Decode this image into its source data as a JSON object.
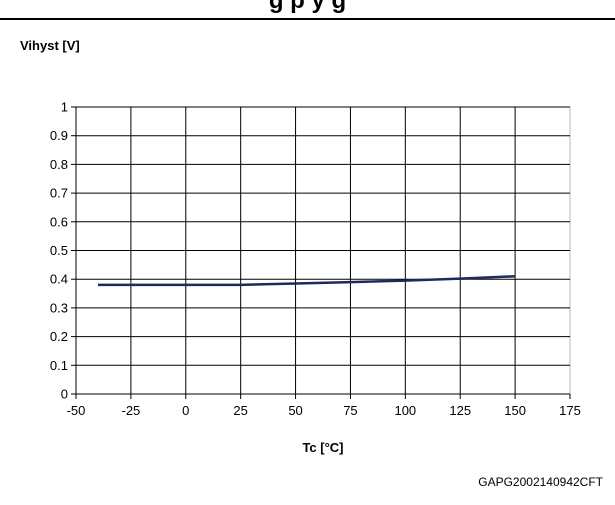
{
  "header": {
    "title": "g         p  y                  g"
  },
  "chart_data": {
    "type": "line",
    "ylabel": "Vihyst [V]",
    "xlabel": "Tc [°C]",
    "xlim": [
      -50,
      175
    ],
    "ylim": [
      0,
      1
    ],
    "xticks": [
      -50,
      -25,
      0,
      25,
      50,
      75,
      100,
      125,
      150,
      175
    ],
    "yticks": [
      0,
      0.1,
      0.2,
      0.3,
      0.4,
      0.5,
      0.6,
      0.7,
      0.8,
      0.9,
      1
    ],
    "grid": true,
    "series": [
      {
        "x": [
          -40,
          -25,
          0,
          25,
          50,
          75,
          100,
          125,
          150
        ],
        "y": [
          0.38,
          0.38,
          0.38,
          0.38,
          0.385,
          0.39,
          0.395,
          0.402,
          0.41
        ],
        "color": "#1f2a5a"
      }
    ]
  },
  "footer": {
    "figure_code": "GAPG2002140942CFT"
  }
}
